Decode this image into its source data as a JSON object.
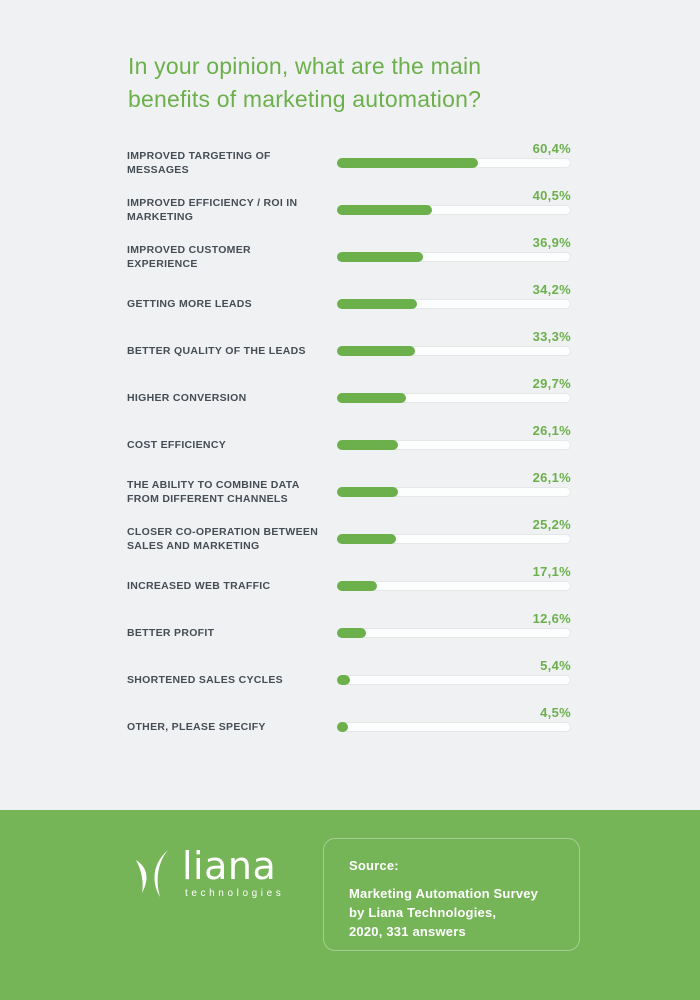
{
  "page": {
    "background_color": "#f0f1f3",
    "accent_green": "#6cb04c",
    "footer_green": "#76b458",
    "label_color": "#454d55"
  },
  "title": {
    "line1": "In your opinion, what are the main",
    "line2": "benefits of marketing automation?"
  },
  "chart_data": {
    "type": "bar",
    "orientation": "horizontal",
    "title": "In your opinion, what are the main benefits of marketing automation?",
    "unit": "%",
    "xlim": [
      0,
      100
    ],
    "grid": false,
    "legend": false,
    "categories": [
      "IMPROVED TARGETING OF MESSAGES",
      "IMPROVED EFFICIENCY / ROI IN MARKETING",
      "IMPROVED CUSTOMER EXPERIENCE",
      "GETTING MORE LEADS",
      "BETTER QUALITY OF THE LEADS",
      "HIGHER CONVERSION",
      "COST EFFICIENCY",
      "THE ABILITY TO COMBINE DATA FROM DIFFERENT CHANNELS",
      "CLOSER CO-OPERATION BETWEEN SALES AND MARKETING",
      "INCREASED WEB TRAFFIC",
      "BETTER PROFIT",
      "SHORTENED SALES CYCLES",
      "OTHER, PLEASE SPECIFY"
    ],
    "category_lines": [
      [
        "IMPROVED TARGETING OF",
        "MESSAGES"
      ],
      [
        "IMPROVED EFFICIENCY / ROI IN",
        "MARKETING"
      ],
      [
        "IMPROVED CUSTOMER",
        "EXPERIENCE"
      ],
      [
        "GETTING MORE LEADS"
      ],
      [
        "BETTER QUALITY OF THE LEADS"
      ],
      [
        "HIGHER CONVERSION"
      ],
      [
        "COST EFFICIENCY"
      ],
      [
        "THE ABILITY TO COMBINE DATA",
        "FROM DIFFERENT CHANNELS"
      ],
      [
        "CLOSER CO-OPERATION BETWEEN",
        "SALES AND MARKETING"
      ],
      [
        "INCREASED WEB TRAFFIC"
      ],
      [
        "BETTER PROFIT"
      ],
      [
        "SHORTENED SALES CYCLES"
      ],
      [
        "OTHER, PLEASE SPECIFY"
      ]
    ],
    "values": [
      60.4,
      40.5,
      36.9,
      34.2,
      33.3,
      29.7,
      26.1,
      26.1,
      25.2,
      17.1,
      12.6,
      5.4,
      4.5
    ],
    "value_labels": [
      "60,4%",
      "40,5%",
      "36,9%",
      "34,2%",
      "33,3%",
      "29,7%",
      "26,1%",
      "26,1%",
      "25,2%",
      "17,1%",
      "12,6%",
      "5,4%",
      "4,5%"
    ]
  },
  "footer": {
    "logo": {
      "brand": "liana",
      "sub": "technologies",
      "mark_icon": "liana-double-crescent"
    },
    "source": {
      "heading": "Source:",
      "lines": [
        "Marketing Automation Survey",
        "by Liana Technologies,",
        "2020, 331 answers"
      ]
    }
  }
}
